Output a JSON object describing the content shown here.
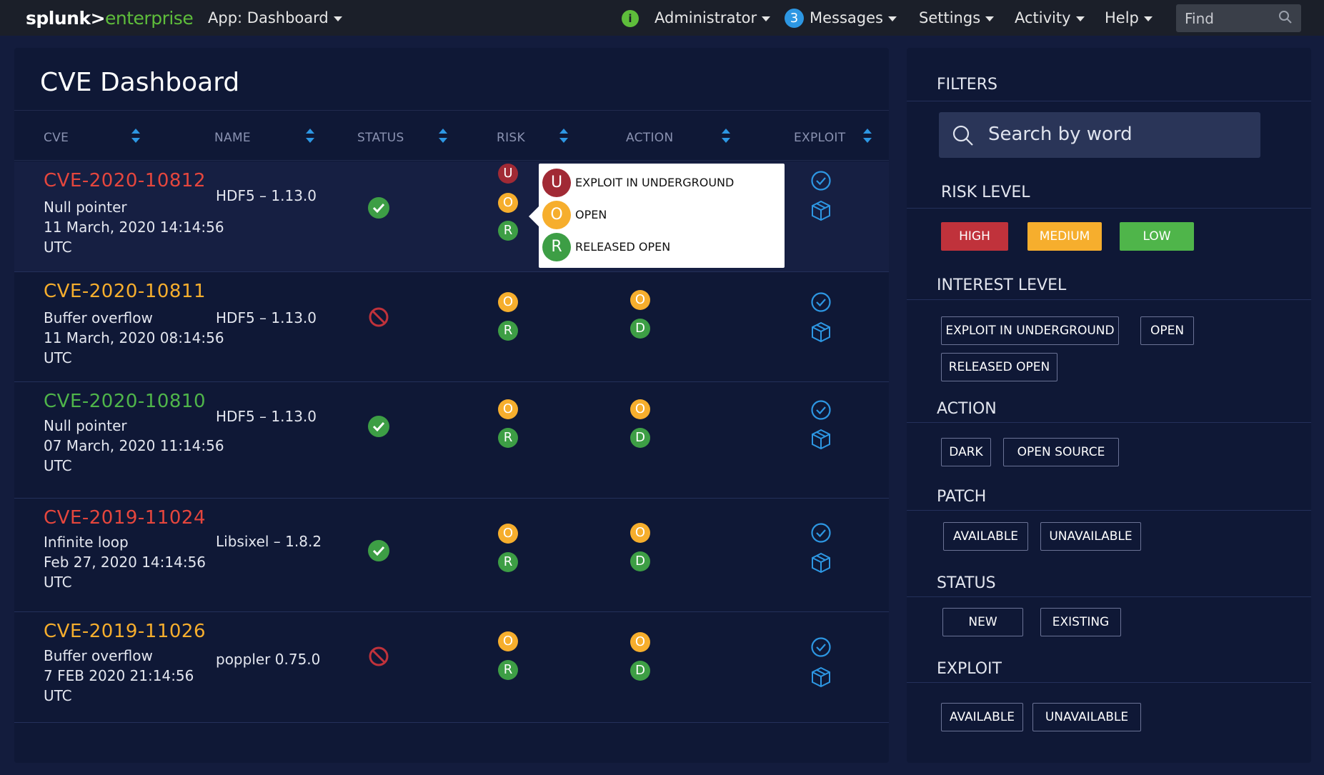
{
  "topbar": {
    "logo_a": "splunk>",
    "logo_b": "enterprise",
    "app": "App: Dashboard",
    "info_icon": "i",
    "user": "Administrator",
    "messages_count": "3",
    "messages": "Messages",
    "settings": "Settings",
    "activity": "Activity",
    "help": "Help",
    "find_placeholder": "Find"
  },
  "dashboard": {
    "title": "CVE Dashboard",
    "columns": [
      "CVE",
      "NAME",
      "STATUS",
      "RISK",
      "ACTION",
      "EXPLOIT"
    ],
    "rows": [
      {
        "id": "CVE-2020-10812",
        "id_color": "#e5463d",
        "type": "Null pointer",
        "date": "11 March, 2020 14:14:56",
        "tz": "UTC",
        "name": "HDF5 – 1.13.0",
        "status": "ok",
        "risk": [
          "U",
          "O",
          "R"
        ],
        "action": []
      },
      {
        "id": "CVE-2020-10811",
        "id_color": "#f6ae2d",
        "type": "Buffer overflow",
        "date": "11 March, 2020 08:14:56",
        "tz": "UTC",
        "name": "HDF5 – 1.13.0",
        "status": "blocked",
        "risk": [
          "O",
          "R"
        ],
        "action": [
          "O",
          "D"
        ]
      },
      {
        "id": "CVE-2020-10810",
        "id_color": "#4fb54a",
        "type": "Null pointer",
        "date": "07 March, 2020 11:14:56",
        "tz": "UTC",
        "name": "HDF5 – 1.13.0",
        "status": "ok",
        "risk": [
          "O",
          "R"
        ],
        "action": [
          "O",
          "D"
        ]
      },
      {
        "id": "CVE-2019-11024",
        "id_color": "#e5463d",
        "type": "Infinite loop",
        "date": "Feb 27, 2020  14:14:56",
        "tz": "UTC",
        "name": "Libsixel – 1.8.2",
        "status": "ok",
        "risk": [
          "O",
          "R"
        ],
        "action": [
          "O",
          "D"
        ]
      },
      {
        "id": "CVE-2019-11026",
        "id_color": "#f6ae2d",
        "type": "Buffer overflow",
        "date": "7 FEB 2020 21:14:56",
        "tz": "UTC",
        "name": "poppler 0.75.0",
        "status": "blocked",
        "risk": [
          "O",
          "R"
        ],
        "action": [
          "O",
          "D"
        ]
      }
    ],
    "tooltip": [
      {
        "letter": "U",
        "label": "EXPLOIT IN UNDERGROUND"
      },
      {
        "letter": "O",
        "label": "OPEN"
      },
      {
        "letter": "R",
        "label": "RELEASED OPEN"
      }
    ]
  },
  "filters": {
    "title": "FILTERS",
    "search_placeholder": "Search by word",
    "risk_level": {
      "heading": "RISK LEVEL",
      "high": "HIGH",
      "medium": "MEDIUM",
      "low": "LOW"
    },
    "interest_level": {
      "heading": "INTEREST LEVEL",
      "exploit": "EXPLOIT IN UNDERGROUND",
      "open": "OPEN",
      "released": "RELEASED OPEN"
    },
    "action": {
      "heading": "ACTION",
      "dark": "DARK",
      "open_source": "OPEN SOURCE"
    },
    "patch": {
      "heading": "PATCH",
      "available": "AVAILABLE",
      "unavailable": "UNAVAILABLE"
    },
    "status": {
      "heading": "STATUS",
      "new": "NEW",
      "existing": "EXISTING"
    },
    "exploit": {
      "heading": "EXPLOIT",
      "available": "AVAILABLE",
      "unavailable": "UNAVAILABLE"
    }
  },
  "colors": {
    "high": "#c0323b",
    "medium": "#f6ae2d",
    "low": "#4fb54a",
    "accent": "#2d97e3"
  }
}
